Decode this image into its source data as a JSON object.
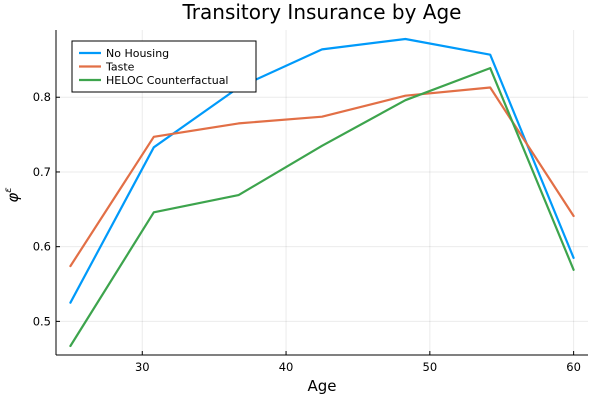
{
  "chart_data": {
    "type": "line",
    "title": "Transitory Insurance by Age",
    "xlabel": "Age",
    "ylabel": "φ",
    "ylabel_superscript": "ε",
    "xlim": [
      24.0,
      61.0
    ],
    "ylim": [
      0.455,
      0.89
    ],
    "xticks": [
      30,
      40,
      50,
      60
    ],
    "yticks": [
      0.5,
      0.6,
      0.7,
      0.8
    ],
    "xtick_labels": [
      "30",
      "40",
      "50",
      "60"
    ],
    "ytick_labels": [
      "0.5",
      "0.6",
      "0.7",
      "0.8"
    ],
    "grid": true,
    "legend_position": "top-left",
    "x": [
      25,
      30.8,
      36.7,
      42.5,
      48.3,
      54.2,
      60
    ],
    "series": [
      {
        "name": "No Housing",
        "color": "#009AFA",
        "values": [
          0.525,
          0.733,
          0.813,
          0.864,
          0.878,
          0.857,
          0.585
        ]
      },
      {
        "name": "Taste",
        "color": "#E26F46",
        "values": [
          0.574,
          0.747,
          0.765,
          0.774,
          0.802,
          0.813,
          0.641
        ]
      },
      {
        "name": "HELOC Counterfactual",
        "color": "#3DA44D",
        "values": [
          0.467,
          0.646,
          0.669,
          0.735,
          0.796,
          0.839,
          0.569
        ]
      }
    ]
  }
}
